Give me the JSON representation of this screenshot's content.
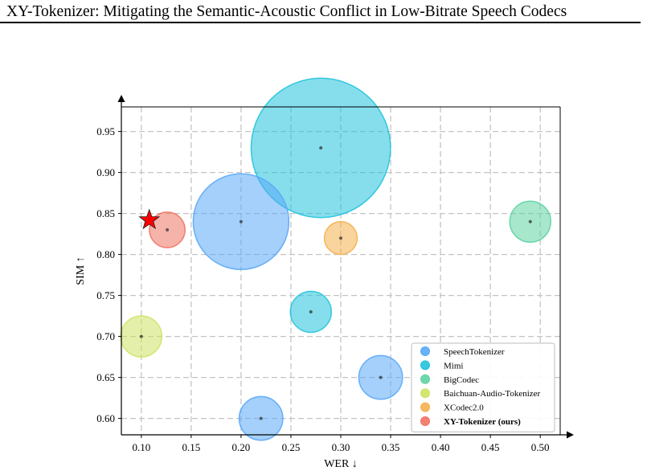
{
  "page": {
    "running_header": "XY-Tokenizer: Mitigating the Semantic-Acoustic Conflict in Low-Bitrate Speech Codecs"
  },
  "chart_data": {
    "type": "scatter",
    "title": "",
    "xlabel": "WER ↓",
    "ylabel": "SIM ↑",
    "xlim": [
      0.08,
      0.52
    ],
    "ylim": [
      0.58,
      0.98
    ],
    "xticks": [
      0.1,
      0.15,
      0.2,
      0.25,
      0.3,
      0.35,
      0.4,
      0.45,
      0.5
    ],
    "yticks": [
      0.6,
      0.65,
      0.7,
      0.75,
      0.8,
      0.85,
      0.9,
      0.95
    ],
    "xtick_labels": [
      "0.10",
      "0.15",
      "0.20",
      "0.25",
      "0.30",
      "0.35",
      "0.40",
      "0.45",
      "0.50"
    ],
    "ytick_labels": [
      "0.60",
      "0.65",
      "0.70",
      "0.75",
      "0.80",
      "0.85",
      "0.90",
      "0.95"
    ],
    "grid": true,
    "grid_style": "dashed",
    "legend_position": "bottom-right",
    "bubble_size_encodes": "relative marker size (not labeled)",
    "series": [
      {
        "name": "SpeechTokenizer",
        "color": "#5aa9f7",
        "points": [
          {
            "x": 0.2,
            "y": 0.84,
            "size": 3.5
          },
          {
            "x": 0.34,
            "y": 0.65,
            "size": 1.6
          },
          {
            "x": 0.22,
            "y": 0.6,
            "size": 1.6
          }
        ]
      },
      {
        "name": "Mimi",
        "color": "#22c3dc",
        "points": [
          {
            "x": 0.28,
            "y": 0.93,
            "size": 5.1
          },
          {
            "x": 0.27,
            "y": 0.73,
            "size": 1.5
          }
        ]
      },
      {
        "name": "BigCodec",
        "color": "#5fd3a3",
        "points": [
          {
            "x": 0.49,
            "y": 0.84,
            "size": 1.5
          }
        ]
      },
      {
        "name": "Baichuan-Audio-Tokenizer",
        "color": "#cde363",
        "points": [
          {
            "x": 0.1,
            "y": 0.7,
            "size": 1.5
          }
        ]
      },
      {
        "name": "XCodec2.0",
        "color": "#f5b04d",
        "points": [
          {
            "x": 0.3,
            "y": 0.82,
            "size": 1.2
          }
        ]
      },
      {
        "name": "XY-Tokenizer (ours)",
        "color": "#ef7464",
        "bold": true,
        "points": [
          {
            "x": 0.126,
            "y": 0.83,
            "size": 1.3
          }
        ]
      }
    ],
    "highlight_marker": {
      "shape": "star",
      "color": "#ff0000",
      "x": 0.108,
      "y": 0.842
    }
  }
}
